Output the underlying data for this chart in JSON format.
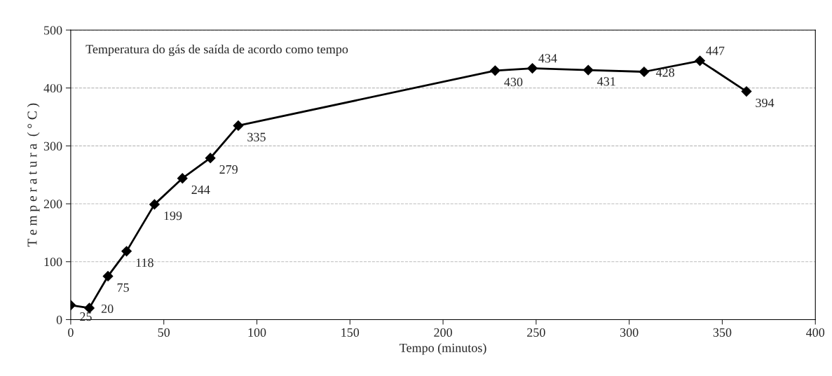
{
  "chart_data": {
    "type": "line",
    "xlabel": "Tempo (minutos)",
    "ylabel": "T e m p e r a t u r a  ( ° C )",
    "annotations": [
      "Temperatura do gás de saída de acordo como tempo"
    ],
    "x": [
      0,
      10,
      20,
      30,
      45,
      60,
      75,
      90,
      228,
      248,
      278,
      308,
      338,
      363
    ],
    "series": [
      {
        "color": "#000000",
        "values": [
          25,
          20,
          75,
          118,
          199,
          244,
          279,
          335,
          430,
          434,
          431,
          428,
          447,
          394
        ]
      }
    ],
    "xlim": [
      0,
      400
    ],
    "xticks": [
      0,
      50,
      100,
      150,
      200,
      250,
      300,
      350,
      400
    ],
    "ylim": [
      0,
      500
    ],
    "yticks": [
      0,
      100,
      200,
      300,
      400,
      500
    ],
    "grid": "y",
    "marker": "diamond",
    "line_style": "solid",
    "data_labels": true,
    "legend": false
  }
}
